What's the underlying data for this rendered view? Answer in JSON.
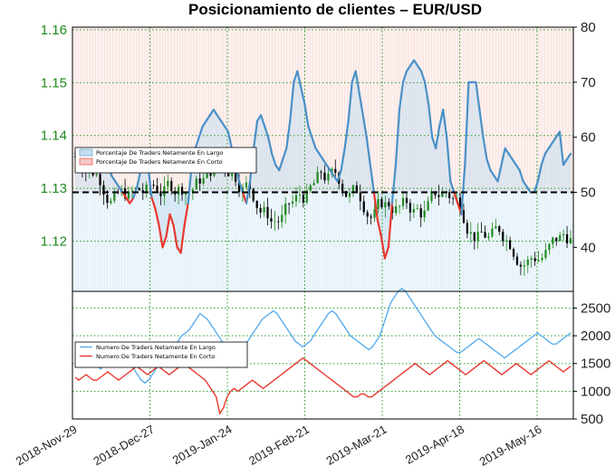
{
  "chart_data": {
    "type": "line",
    "title": "Posicionamiento de clientes – EUR/USD",
    "x_ticks": [
      "2018-Nov-29",
      "2018-Dec-27",
      "2019-Jan-24",
      "2019-Feb-21",
      "2019-Mar-21",
      "2019-Apr-18",
      "2019-May-16"
    ],
    "price_panel": {
      "left_axis": {
        "ticks": [
          1.12,
          1.13,
          1.14,
          1.15,
          1.16
        ],
        "ylim": [
          1.1105,
          1.1605
        ]
      },
      "right_axis": {
        "ticks": [
          40,
          50,
          60,
          70,
          80
        ],
        "ylim": [
          32,
          80
        ]
      },
      "threshold": 50,
      "legend": [
        "Porcentaje De Traders Netamente En Largo",
        "Porcentaje De Traders Netamente En Corto"
      ],
      "long_pct": [
        57,
        58,
        57,
        56,
        55,
        56,
        57,
        57,
        56,
        55,
        53,
        52,
        51,
        50,
        49,
        48,
        49,
        51,
        54,
        56,
        55,
        49,
        47,
        44,
        40,
        42,
        46,
        44,
        40,
        39,
        44,
        48,
        55,
        58,
        60,
        62,
        63,
        64,
        65,
        64,
        63,
        62,
        61,
        58,
        55,
        52,
        50,
        48,
        52,
        58,
        63,
        64,
        62,
        60,
        57,
        55,
        54,
        56,
        58,
        63,
        70,
        72,
        69,
        66,
        62,
        60,
        58,
        57,
        56,
        55,
        54,
        53,
        52,
        54,
        58,
        63,
        70,
        72,
        68,
        64,
        60,
        55,
        50,
        45,
        42,
        38,
        40,
        48,
        55,
        65,
        70,
        72,
        73,
        74,
        73,
        72,
        70,
        66,
        60,
        58,
        62,
        65,
        60,
        52,
        50,
        48,
        46,
        55,
        70,
        70,
        70,
        65,
        60,
        56,
        54,
        53,
        52,
        55,
        58,
        57,
        56,
        55,
        54,
        52,
        51,
        50,
        50,
        52,
        55,
        57,
        58,
        59,
        60,
        61,
        55,
        56,
        57
      ]
    },
    "traders_panel": {
      "right_axis": {
        "ticks": [
          500,
          1000,
          1500,
          2000,
          2500
        ],
        "ylim": [
          500,
          2800
        ]
      },
      "legend": [
        "Numero De Traders Netamente En Largo",
        "Numero De Traders Netamente En Corto"
      ],
      "long": [
        1700,
        1650,
        1700,
        1600,
        1550,
        1500,
        1450,
        1400,
        1500,
        1600,
        1700,
        1750,
        1800,
        1700,
        1600,
        1500,
        1400,
        1300,
        1200,
        1150,
        1200,
        1300,
        1400,
        1500,
        1600,
        1700,
        1750,
        1800,
        1900,
        2000,
        2050,
        2100,
        2200,
        2300,
        2400,
        2350,
        2300,
        2200,
        2100,
        2000,
        1900,
        1850,
        1800,
        1750,
        1700,
        1700,
        1800,
        1900,
        2000,
        2100,
        2200,
        2300,
        2350,
        2400,
        2450,
        2400,
        2300,
        2200,
        2100,
        2000,
        1900,
        1850,
        1800,
        1850,
        1900,
        2000,
        2100,
        2200,
        2300,
        2400,
        2450,
        2400,
        2300,
        2200,
        2100,
        2000,
        1950,
        1900,
        1850,
        1800,
        1750,
        1800,
        1900,
        2000,
        2200,
        2400,
        2600,
        2700,
        2800,
        2850,
        2800,
        2700,
        2600,
        2500,
        2400,
        2300,
        2200,
        2100,
        2000,
        1950,
        1900,
        1850,
        1800,
        1750,
        1700,
        1700,
        1750,
        1800,
        1850,
        1900,
        1950,
        1900,
        1850,
        1800,
        1750,
        1700,
        1650,
        1600,
        1650,
        1700,
        1750,
        1800,
        1850,
        1900,
        1950,
        2000,
        2050,
        2000,
        1950,
        1900,
        1850,
        1850,
        1900,
        1950,
        2000,
        2050
      ],
      "short": [
        1250,
        1200,
        1250,
        1300,
        1250,
        1200,
        1200,
        1250,
        1300,
        1350,
        1300,
        1250,
        1200,
        1250,
        1300,
        1350,
        1400,
        1450,
        1400,
        1350,
        1300,
        1350,
        1400,
        1450,
        1400,
        1350,
        1300,
        1350,
        1400,
        1450,
        1500,
        1450,
        1400,
        1350,
        1300,
        1250,
        1200,
        1100,
        1000,
        900,
        600,
        700,
        900,
        1000,
        1050,
        1000,
        1050,
        1100,
        1150,
        1200,
        1150,
        1100,
        1050,
        1100,
        1150,
        1200,
        1250,
        1300,
        1350,
        1400,
        1450,
        1500,
        1550,
        1600,
        1550,
        1500,
        1450,
        1400,
        1350,
        1300,
        1250,
        1200,
        1150,
        1100,
        1050,
        1000,
        950,
        900,
        900,
        950,
        950,
        900,
        900,
        950,
        1000,
        1050,
        1100,
        1150,
        1200,
        1250,
        1300,
        1350,
        1400,
        1450,
        1500,
        1450,
        1400,
        1350,
        1300,
        1350,
        1400,
        1450,
        1500,
        1550,
        1500,
        1450,
        1400,
        1350,
        1300,
        1350,
        1400,
        1450,
        1500,
        1550,
        1500,
        1450,
        1400,
        1350,
        1300,
        1350,
        1400,
        1450,
        1500,
        1450,
        1400,
        1350,
        1300,
        1350,
        1400,
        1450,
        1500,
        1550,
        1500,
        1450,
        1400,
        1350,
        1400,
        1450
      ]
    },
    "colors": {
      "long": "#4a90c8",
      "short": "#e8382f",
      "price_up": "#1f8a1f",
      "price_down": "#000000",
      "trader_long": "#5aaef0",
      "trader_short": "#e8382f"
    }
  }
}
